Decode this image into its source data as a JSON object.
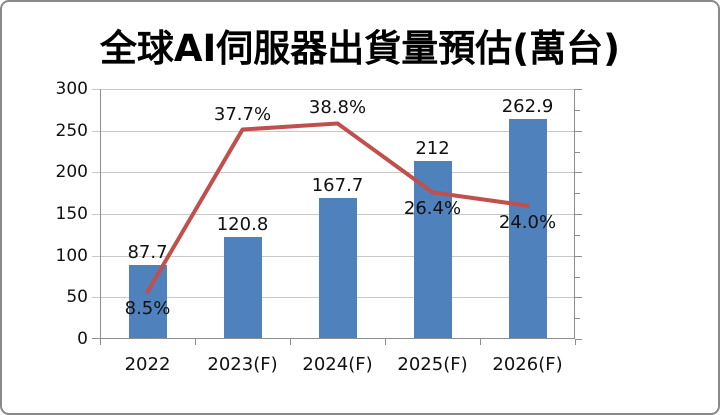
{
  "title": "全球AI伺服器出貨量預估(萬台)",
  "chart_data": {
    "type": "bar",
    "combo": "bar+line",
    "title": "全球AI伺服器出貨量預估(萬台)",
    "categories": [
      "2022",
      "2023(F)",
      "2024(F)",
      "2025(F)",
      "2026(F)"
    ],
    "bar_series": {
      "color": "#4f81bd",
      "values": [
        87.7,
        120.8,
        167.7,
        212,
        262.9
      ],
      "data_labels": [
        "87.7",
        "120.8",
        "167.7",
        "212",
        "262.9"
      ]
    },
    "line_series": {
      "color": "#c0504d",
      "values_percent": [
        8.5,
        37.7,
        38.8,
        26.4,
        24.0
      ],
      "data_labels": [
        "8.5%",
        "37.7%",
        "38.8%",
        "26.4%",
        "24.0%"
      ],
      "label_positions": [
        "below",
        "above",
        "above",
        "below",
        "below"
      ]
    },
    "y_axis": {
      "min": 0,
      "max": 300,
      "tick_step": 50,
      "tick_labels": [
        "0",
        "50",
        "100",
        "150",
        "200",
        "250",
        "300"
      ]
    },
    "secondary_y_axis": {
      "min": 0,
      "max": 45,
      "minor_tick_step_primary_units": 25,
      "labels_visible": false
    },
    "grid": true,
    "legend": "none"
  },
  "colors": {
    "bar": "#4f81bd",
    "line": "#c0504d",
    "gridline": "#c9c9c9",
    "axis": "#8e8e8e",
    "text": "#111111",
    "frame_border": "#8a8a8a",
    "background": "#ffffff"
  }
}
